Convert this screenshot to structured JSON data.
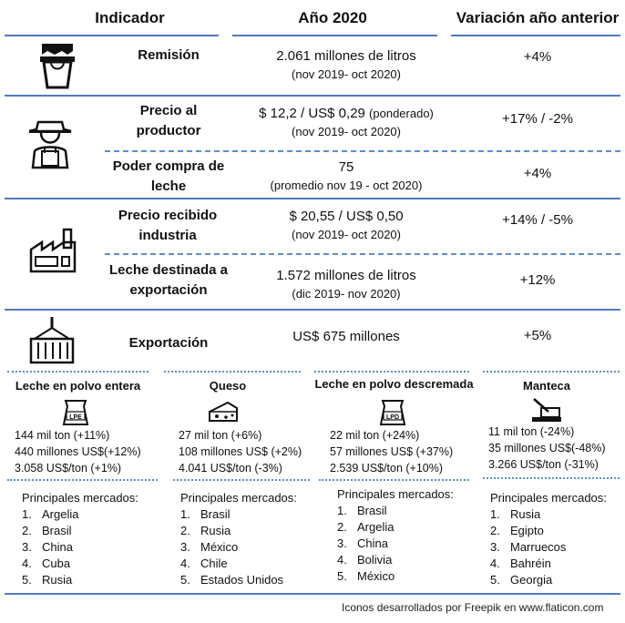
{
  "header": {
    "indicador": "Indicador",
    "anio": "Año 2020",
    "variacion": "Variación año anterior"
  },
  "rows": {
    "remision": {
      "label": "Remisión",
      "value": "2.061 millones de litros",
      "period": "(nov 2019- oct 2020)",
      "variation": "+4%"
    },
    "precio_productor": {
      "label": "Precio al productor",
      "value": "$ 12,2 / US$ 0,29",
      "value_note": "(ponderado)",
      "period": "(nov 2019- oct 2020)",
      "variation": "+17% / -2%"
    },
    "poder_compra": {
      "label": "Poder compra de leche",
      "value": "75",
      "period": "(promedio nov 19 - oct 2020)",
      "variation": "+4%"
    },
    "precio_industria": {
      "label": "Precio recibido industria",
      "value": "$ 20,55 / US$ 0,50",
      "period": "(nov 2019- oct 2020)",
      "variation": "+14% / -5%"
    },
    "leche_exportacion": {
      "label": "Leche destinada a exportación",
      "value": "1.572 millones de litros",
      "period": "(dic 2019- nov 2020)",
      "variation": "+12%"
    },
    "exportacion": {
      "label": "Exportación",
      "value": "US$ 675 millones",
      "variation": "+5%"
    }
  },
  "products": [
    {
      "name": "Leche en polvo entera",
      "icon_text": "LPE",
      "stats": [
        "144 mil ton (+11%)",
        "440 millones US$(+12%)",
        "3.058 US$/ton (+1%)"
      ],
      "markets_title": "Principales mercados:",
      "markets": [
        "Argelia",
        "Brasil",
        "China",
        "Cuba",
        "Rusia"
      ]
    },
    {
      "name": "Queso",
      "icon_text": "",
      "stats": [
        "27 mil ton (+6%)",
        "108 millones US$ (+2%)",
        "4.041 US$/ton (-3%)"
      ],
      "markets_title": "Principales mercados:",
      "markets": [
        "Brasil",
        "Rusia",
        "México",
        "Chile",
        "Estados Unidos"
      ]
    },
    {
      "name": "Leche en polvo descremada",
      "icon_text": "LPD",
      "stats": [
        "22 mil ton (+24%)",
        "57 millones US$ (+37%)",
        "2.539 US$/ton (+10%)"
      ],
      "markets_title": "Principales mercados:",
      "markets": [
        "Brasil",
        "Argelia",
        "China",
        "Bolivia",
        "México"
      ]
    },
    {
      "name": "Manteca",
      "icon_text": "",
      "stats": [
        "11 mil ton (-24%)",
        "35 millones US$(-48%)",
        "3.266 US$/ton (-31%)"
      ],
      "markets_title": "Principales mercados:",
      "markets": [
        "Rusia",
        "Egipto",
        "Marruecos",
        "Bahréin",
        "Georgia"
      ]
    }
  ],
  "footer": "Iconos desarrollados por Freepik en www.flaticon.com"
}
